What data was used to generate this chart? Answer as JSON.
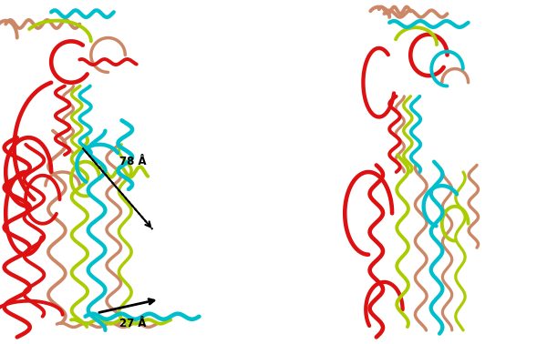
{
  "background_color": "#ffffff",
  "colors": {
    "red": "#dd1111",
    "cyan": "#00bfcc",
    "yellow_green": "#aacc00",
    "salmon": "#cc8866"
  },
  "figsize": [
    6.0,
    3.78
  ],
  "dpi": 100
}
